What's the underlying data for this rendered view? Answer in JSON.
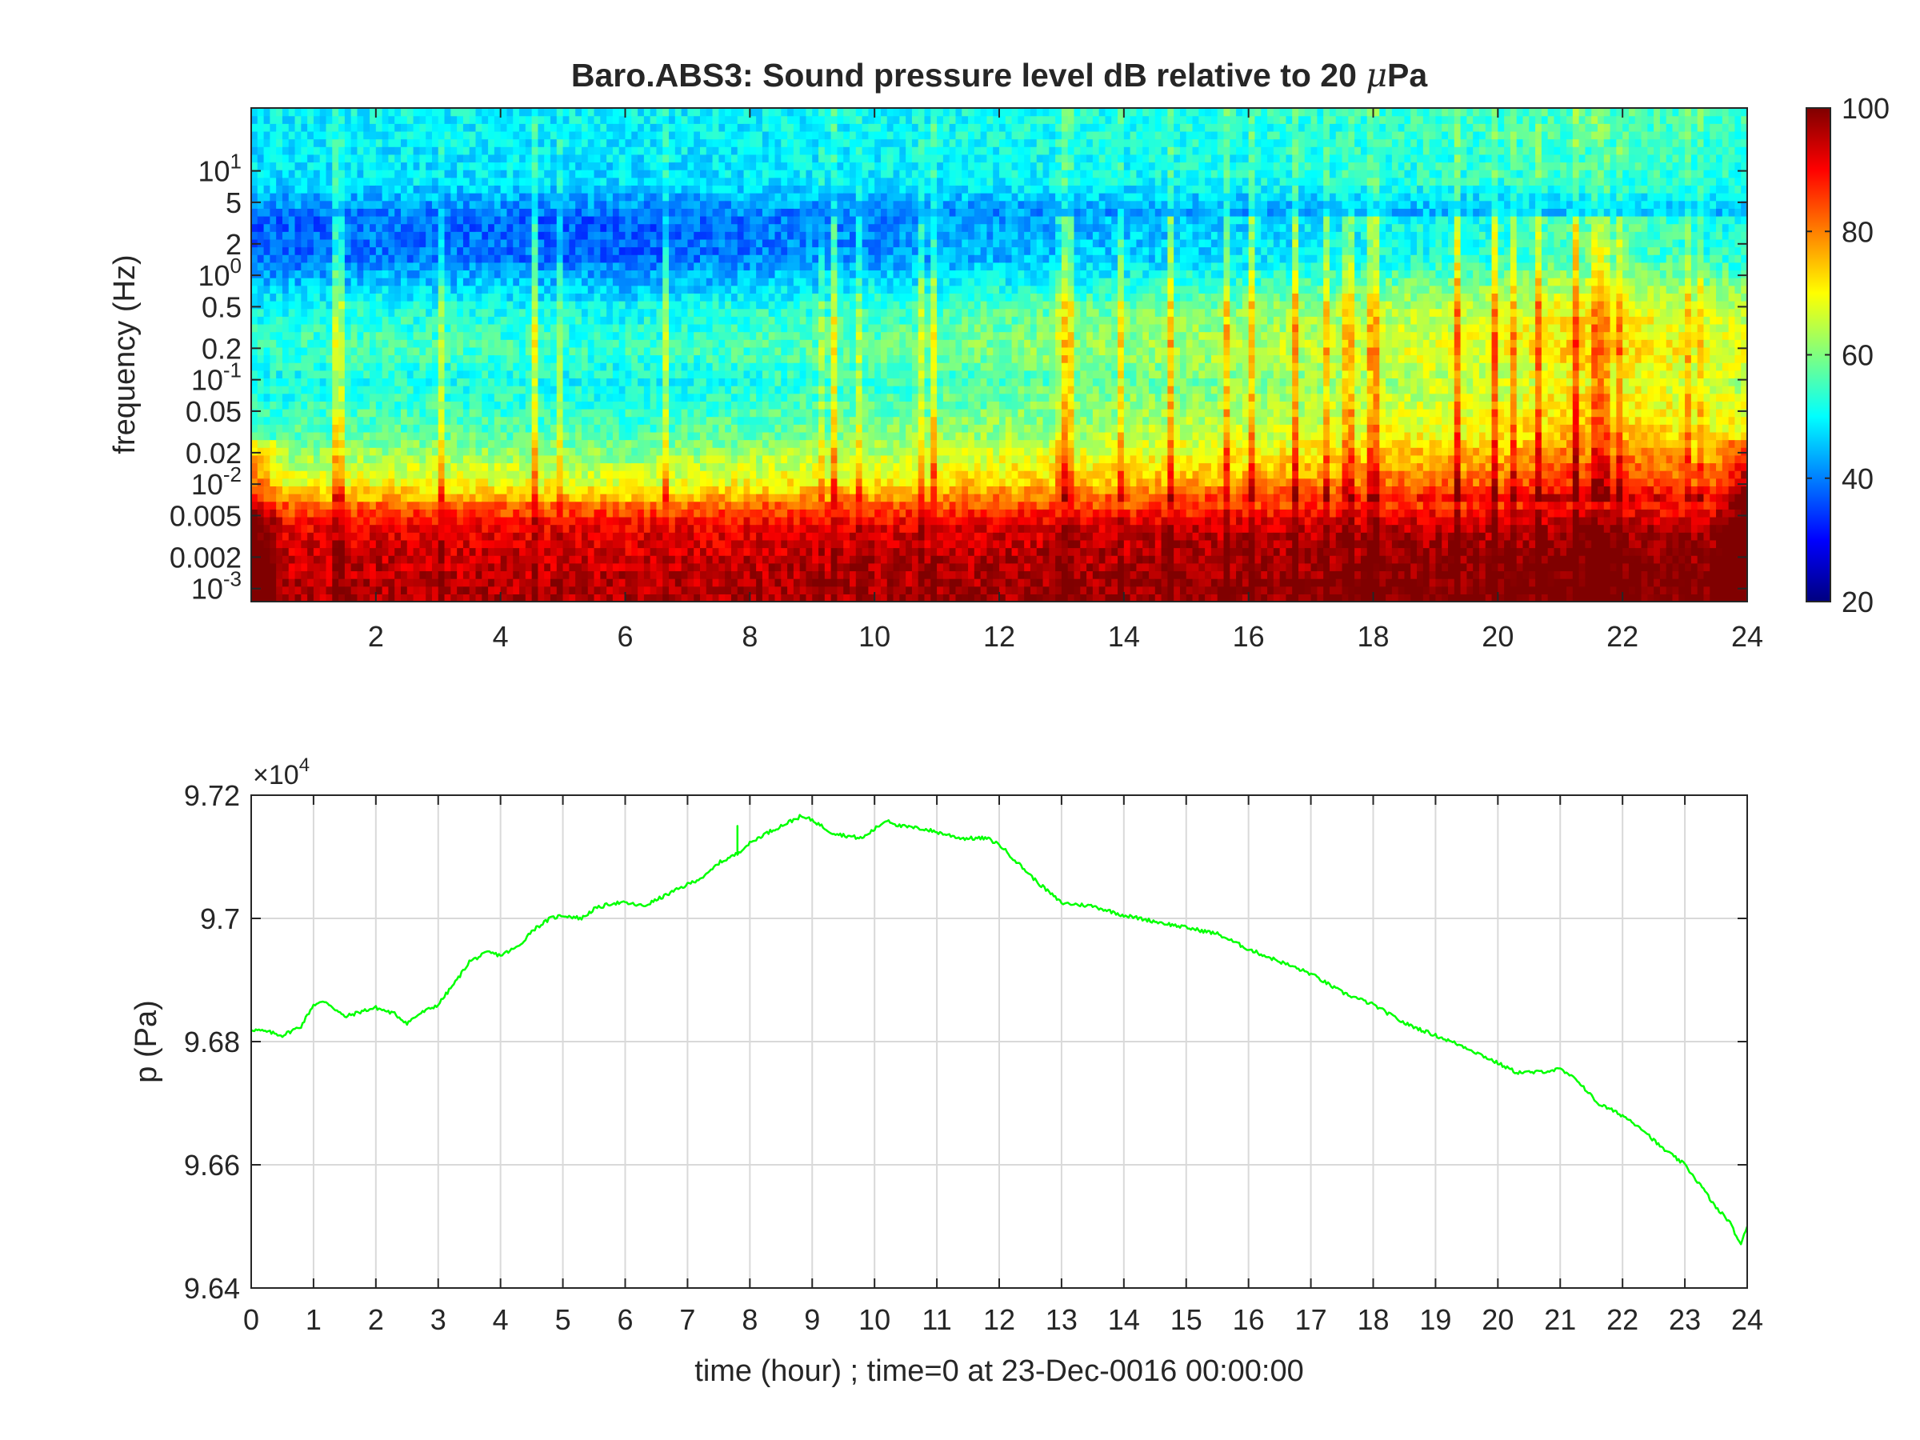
{
  "chart_data": [
    {
      "type": "heatmap",
      "title": "Baro.ABS3: Sound pressure level dB relative to 20 μPa",
      "title_prefix": "Baro.ABS3: Sound pressure level dB relative to 20 ",
      "title_mu": "μ",
      "title_suffix": "Pa",
      "ylabel": "frequency (Hz)",
      "xlabel": "",
      "xlim": [
        0,
        24
      ],
      "ylim_hz": [
        0.00075,
        40
      ],
      "y_scale": "log",
      "x_ticks": [
        "2",
        "4",
        "6",
        "8",
        "10",
        "12",
        "14",
        "16",
        "18",
        "20",
        "22",
        "24"
      ],
      "x_tick_values": [
        2,
        4,
        6,
        8,
        10,
        12,
        14,
        16,
        18,
        20,
        22,
        24
      ],
      "y_ticks": [
        {
          "value": 10,
          "base": "10",
          "exp": "1"
        },
        {
          "value": 5,
          "base": "5",
          "exp": ""
        },
        {
          "value": 2,
          "base": "2",
          "exp": ""
        },
        {
          "value": 1,
          "base": "10",
          "exp": "0"
        },
        {
          "value": 0.5,
          "base": "0.5",
          "exp": ""
        },
        {
          "value": 0.2,
          "base": "0.2",
          "exp": ""
        },
        {
          "value": 0.1,
          "base": "10",
          "exp": "-1"
        },
        {
          "value": 0.05,
          "base": "0.05",
          "exp": ""
        },
        {
          "value": 0.02,
          "base": "0.02",
          "exp": ""
        },
        {
          "value": 0.01,
          "base": "10",
          "exp": "-2"
        },
        {
          "value": 0.005,
          "base": "0.005",
          "exp": ""
        },
        {
          "value": 0.002,
          "base": "0.002",
          "exp": ""
        },
        {
          "value": 0.001,
          "base": "10",
          "exp": "-3"
        }
      ],
      "colormap": "jet",
      "colorbar_range": [
        20,
        100
      ],
      "colorbar_ticks": [
        "100",
        "80",
        "60",
        "40",
        "20"
      ],
      "colorbar_tick_values": [
        100,
        80,
        60,
        40,
        20
      ],
      "level_profile_db": [
        {
          "f": 40,
          "db": 51
        },
        {
          "f": 8,
          "db": 49
        },
        {
          "f": 4,
          "db": 41
        },
        {
          "f": 1.5,
          "db": 42
        },
        {
          "f": 0.5,
          "db": 54
        },
        {
          "f": 0.2,
          "db": 58
        },
        {
          "f": 0.1,
          "db": 54
        },
        {
          "f": 0.03,
          "db": 60
        },
        {
          "f": 0.01,
          "db": 72
        },
        {
          "f": 0.006,
          "db": 84
        },
        {
          "f": 0.004,
          "db": 92
        },
        {
          "f": 0.002,
          "db": 95
        },
        {
          "f": 0.001,
          "db": 97
        }
      ],
      "time_activity_profile": [
        {
          "t": 0,
          "d": -4
        },
        {
          "t": 2,
          "d": -2
        },
        {
          "t": 4,
          "d": -3
        },
        {
          "t": 6,
          "d": -4
        },
        {
          "t": 8,
          "d": -2
        },
        {
          "t": 10,
          "d": 0
        },
        {
          "t": 12,
          "d": 2
        },
        {
          "t": 14,
          "d": 4
        },
        {
          "t": 16,
          "d": 6
        },
        {
          "t": 18,
          "d": 9
        },
        {
          "t": 20,
          "d": 11
        },
        {
          "t": 21.3,
          "d": 16
        },
        {
          "t": 22,
          "d": 15
        },
        {
          "t": 23,
          "d": 12
        },
        {
          "t": 24,
          "d": 10
        }
      ]
    },
    {
      "type": "line",
      "title": "",
      "xlabel": "time (hour) ; time=0 at 23-Dec-0016 00:00:00",
      "ylabel": "p (Pa)",
      "xlim": [
        0,
        24
      ],
      "ylim": [
        96400,
        97200
      ],
      "grid": true,
      "exponent_label_base": "×10",
      "exponent_label_exp": "4",
      "x_ticks": [
        "0",
        "1",
        "2",
        "3",
        "4",
        "5",
        "6",
        "7",
        "8",
        "9",
        "10",
        "11",
        "12",
        "13",
        "14",
        "15",
        "16",
        "17",
        "18",
        "19",
        "20",
        "21",
        "22",
        "23",
        "24"
      ],
      "x_tick_values": [
        0,
        1,
        2,
        3,
        4,
        5,
        6,
        7,
        8,
        9,
        10,
        11,
        12,
        13,
        14,
        15,
        16,
        17,
        18,
        19,
        20,
        21,
        22,
        23,
        24
      ],
      "y_ticks": [
        "9.72",
        "9.7",
        "9.68",
        "9.66",
        "9.64"
      ],
      "y_tick_values": [
        97200,
        97000,
        96800,
        96600,
        96400
      ],
      "line_color": "#00ff00",
      "series": [
        {
          "x": [
            0,
            0.3,
            0.5,
            0.8,
            1.0,
            1.2,
            1.5,
            1.8,
            2.0,
            2.3,
            2.5,
            2.7,
            3.0,
            3.3,
            3.5,
            3.8,
            4.0,
            4.3,
            4.5,
            4.8,
            5.0,
            5.3,
            5.5,
            5.8,
            6.0,
            6.3,
            6.5,
            6.8,
            7.0,
            7.3,
            7.5,
            7.8,
            7.8,
            7.8,
            7.9,
            8.2,
            8.5,
            8.8,
            9.0,
            9.3,
            9.5,
            9.8,
            10.0,
            10.2,
            10.4,
            10.8,
            11.0,
            11.4,
            11.8,
            12.0,
            12.3,
            12.6,
            13.0,
            13.5,
            14.0,
            14.5,
            15.0,
            15.5,
            16.0,
            16.5,
            17.0,
            17.5,
            18.0,
            18.5,
            19.0,
            19.5,
            20.0,
            20.3,
            20.6,
            21.0,
            21.3,
            21.6,
            22.0,
            22.3,
            22.6,
            22.8,
            23.0,
            23.3,
            23.5,
            23.7,
            23.8,
            23.9,
            24.0
          ],
          "y": [
            96820,
            96815,
            96810,
            96825,
            96860,
            96865,
            96840,
            96850,
            96855,
            96845,
            96830,
            96845,
            96860,
            96900,
            96930,
            96945,
            96940,
            96955,
            96980,
            97000,
            97005,
            97000,
            97015,
            97025,
            97025,
            97020,
            97030,
            97045,
            97055,
            97070,
            97090,
            97105,
            97150,
            97105,
            97115,
            97135,
            97150,
            97165,
            97160,
            97140,
            97135,
            97130,
            97145,
            97160,
            97150,
            97145,
            97140,
            97130,
            97130,
            97120,
            97090,
            97060,
            97025,
            97020,
            97005,
            96995,
            96985,
            96975,
            96950,
            96930,
            96910,
            96880,
            96860,
            96830,
            96810,
            96790,
            96765,
            96750,
            96750,
            96755,
            96735,
            96700,
            96680,
            96660,
            96630,
            96615,
            96600,
            96560,
            96530,
            96510,
            96490,
            96470,
            96500
          ]
        }
      ]
    }
  ]
}
